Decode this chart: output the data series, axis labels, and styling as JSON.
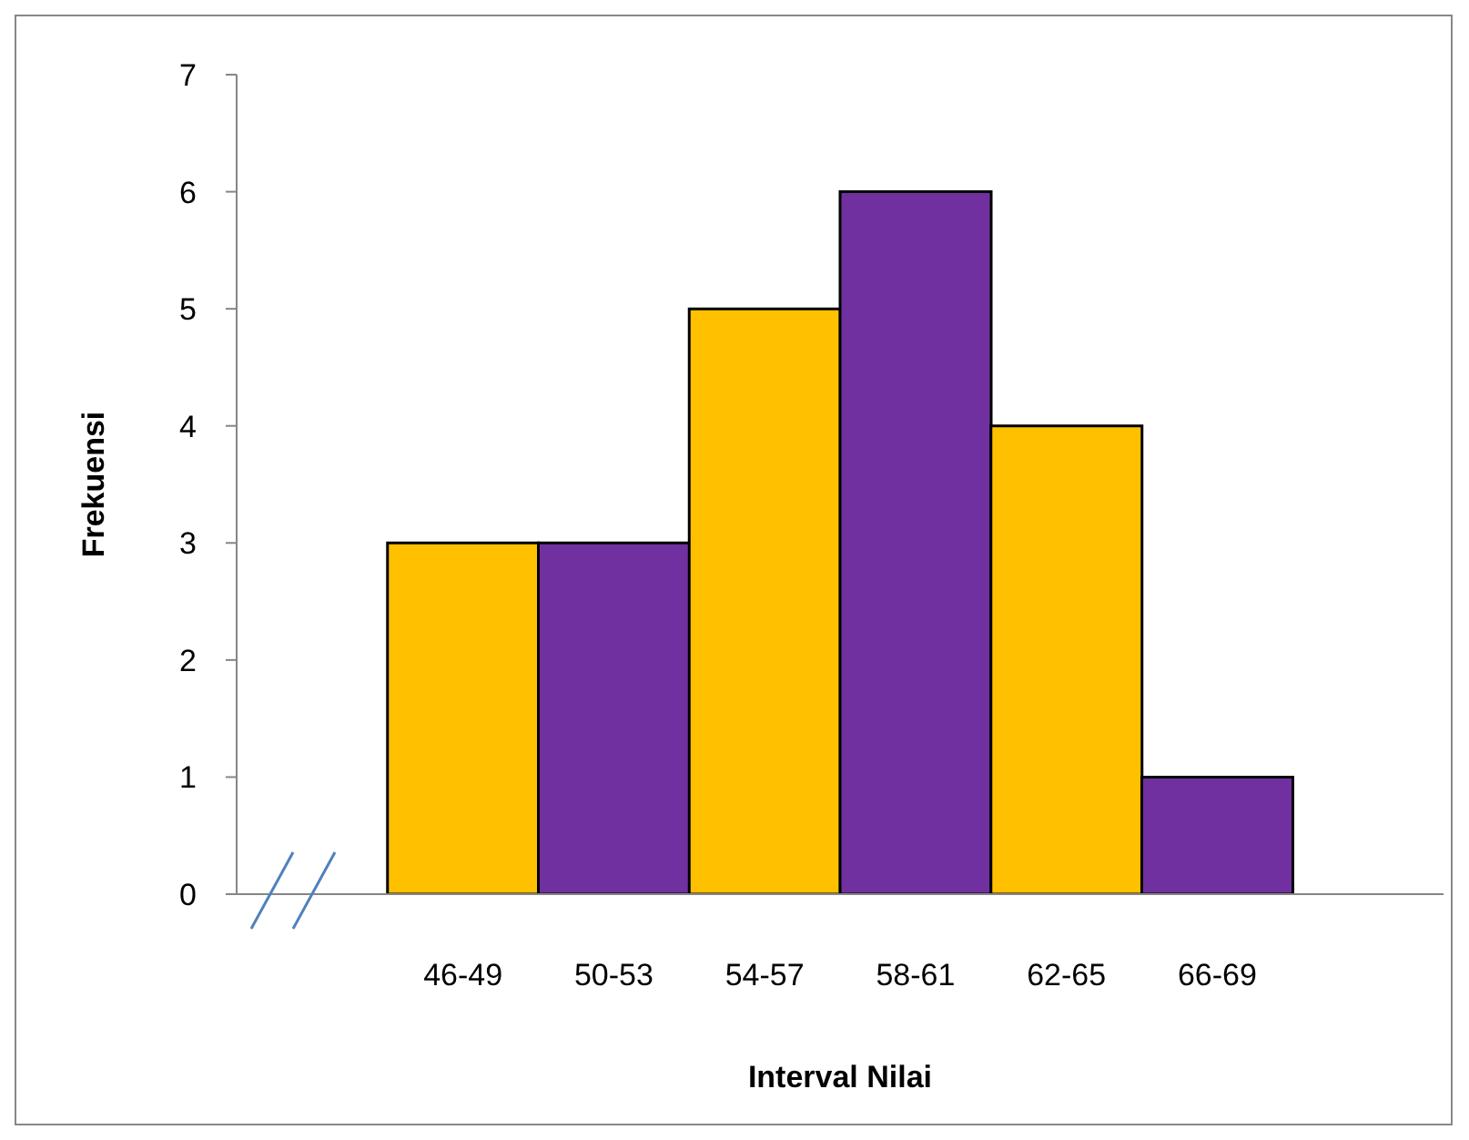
{
  "chart_data": {
    "type": "bar",
    "xlabel": "Interval Nilai",
    "ylabel": "Frekuensi",
    "categories": [
      null,
      "46-49",
      "50-53",
      "54-57",
      "58-61",
      "62-65",
      "66-69",
      null
    ],
    "values": [
      null,
      3,
      3,
      5,
      6,
      4,
      1,
      null
    ],
    "colors": [
      "#ffc000",
      "#ffc000",
      "#7030a0",
      "#ffc000",
      "#7030a0",
      "#ffc000",
      "#7030a0",
      "#7030a0"
    ],
    "ylim": [
      0,
      7
    ],
    "yticks": [
      0,
      1,
      2,
      3,
      4,
      5,
      6,
      7
    ],
    "grid": false
  }
}
